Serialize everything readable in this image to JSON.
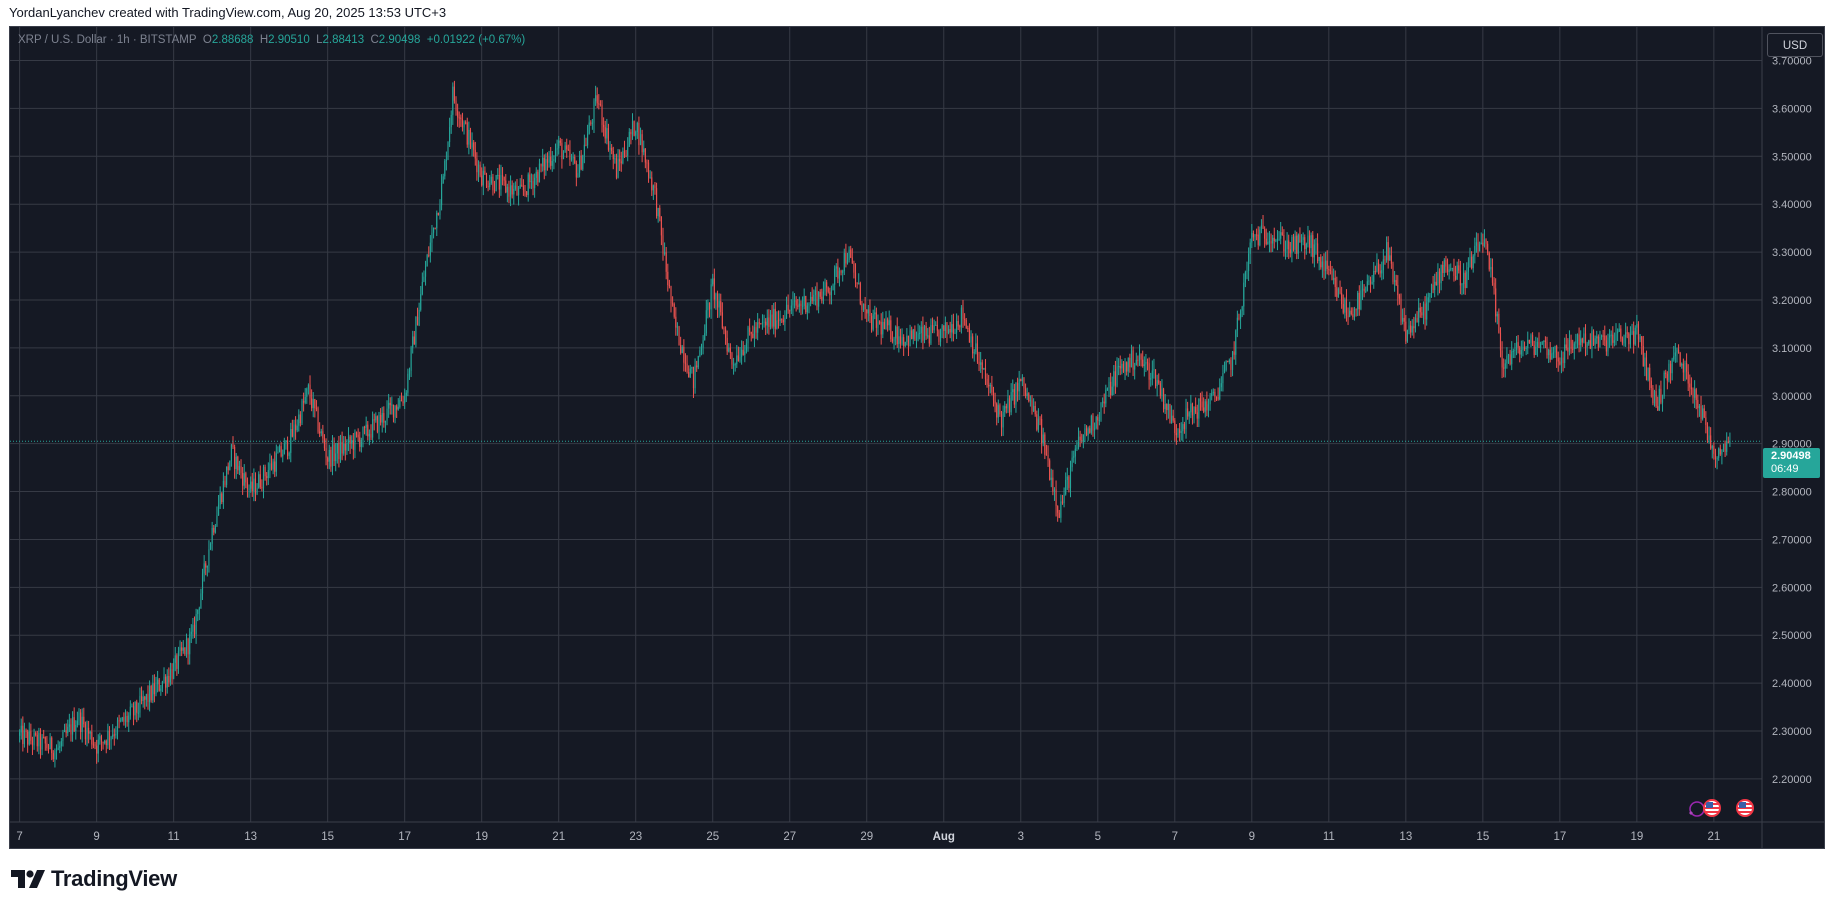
{
  "caption": "YordanLyanchev created with TradingView.com, Aug 20, 2025 13:53 UTC+3",
  "legend": {
    "symbol": "XRP / U.S. Dollar · 1h · BITSTAMP",
    "o_label": "O",
    "o": "2.88688",
    "h_label": "H",
    "h": "2.90510",
    "l_label": "L",
    "l": "2.88413",
    "c_label": "C",
    "c": "2.90498",
    "change": "+0.01922 (+0.67%)"
  },
  "currency_button": "USD",
  "last_price": {
    "price": "2.90498",
    "countdown": "06:49"
  },
  "brand": "TradingView",
  "icons": {
    "logo": "tradingview-logo-icon",
    "flags": "us-flag-icon",
    "event": "economic-event-icon"
  },
  "colors": {
    "up": "#26a69a",
    "down": "#ef5350",
    "background": "#151924",
    "grid": "#363a45",
    "text": "#b2b5be"
  },
  "chart_data": {
    "type": "candlestick",
    "title": "XRP / U.S. Dollar · 1h · BITSTAMP",
    "xlabel": "",
    "ylabel": "",
    "ylim": [
      2.11,
      3.77
    ],
    "grid": true,
    "y_ticks": [
      "2.20000",
      "2.30000",
      "2.40000",
      "2.50000",
      "2.60000",
      "2.70000",
      "2.80000",
      "2.90000",
      "3.00000",
      "3.10000",
      "3.20000",
      "3.30000",
      "3.40000",
      "3.50000",
      "3.60000",
      "3.70000"
    ],
    "x_ticks": [
      "7",
      "9",
      "11",
      "13",
      "15",
      "17",
      "19",
      "21",
      "23",
      "25",
      "27",
      "29",
      "Aug",
      "3",
      "5",
      "7",
      "9",
      "11",
      "13",
      "15",
      "17",
      "19",
      "21"
    ],
    "x_ticks_bold": [
      "Aug"
    ],
    "approx_close_path": [
      {
        "x": "Jul 7 00:00",
        "close": 2.29
      },
      {
        "x": "Jul 8 00:00",
        "close": 2.26
      },
      {
        "x": "Jul 8 12:00",
        "close": 2.33
      },
      {
        "x": "Jul 9 00:00",
        "close": 2.27
      },
      {
        "x": "Jul 10 00:00",
        "close": 2.34
      },
      {
        "x": "Jul 11 00:00",
        "close": 2.43
      },
      {
        "x": "Jul 11 12:00",
        "close": 2.5
      },
      {
        "x": "Jul 12 00:00",
        "close": 2.72
      },
      {
        "x": "Jul 12 12:00",
        "close": 2.88
      },
      {
        "x": "Jul 13 00:00",
        "close": 2.8
      },
      {
        "x": "Jul 14 00:00",
        "close": 2.9
      },
      {
        "x": "Jul 14 12:00",
        "close": 3.01
      },
      {
        "x": "Jul 15 00:00",
        "close": 2.87
      },
      {
        "x": "Jul 16 00:00",
        "close": 2.92
      },
      {
        "x": "Jul 17 00:00",
        "close": 3.0
      },
      {
        "x": "Jul 17 12:00",
        "close": 3.25
      },
      {
        "x": "Jul 18 00:00",
        "close": 3.45
      },
      {
        "x": "Jul 18 06:00",
        "close": 3.63
      },
      {
        "x": "Jul 19 00:00",
        "close": 3.46
      },
      {
        "x": "Jul 20 00:00",
        "close": 3.42
      },
      {
        "x": "Jul 21 00:00",
        "close": 3.52
      },
      {
        "x": "Jul 21 12:00",
        "close": 3.47
      },
      {
        "x": "Jul 22 00:00",
        "close": 3.62
      },
      {
        "x": "Jul 22 12:00",
        "close": 3.47
      },
      {
        "x": "Jul 23 00:00",
        "close": 3.57
      },
      {
        "x": "Jul 23 12:00",
        "close": 3.42
      },
      {
        "x": "Jul 24 00:00",
        "close": 3.15
      },
      {
        "x": "Jul 24 12:00",
        "close": 3.03
      },
      {
        "x": "Jul 25 00:00",
        "close": 3.23
      },
      {
        "x": "Jul 25 12:00",
        "close": 3.07
      },
      {
        "x": "Jul 26 00:00",
        "close": 3.13
      },
      {
        "x": "Jul 27 00:00",
        "close": 3.18
      },
      {
        "x": "Jul 28 00:00",
        "close": 3.22
      },
      {
        "x": "Jul 28 12:00",
        "close": 3.3
      },
      {
        "x": "Jul 29 00:00",
        "close": 3.16
      },
      {
        "x": "Jul 30 00:00",
        "close": 3.12
      },
      {
        "x": "Jul 31 00:00",
        "close": 3.13
      },
      {
        "x": "Jul 31 12:00",
        "close": 3.17
      },
      {
        "x": "Aug 1 00:00",
        "close": 3.05
      },
      {
        "x": "Aug 1 12:00",
        "close": 2.95
      },
      {
        "x": "Aug 2 00:00",
        "close": 3.03
      },
      {
        "x": "Aug 2 12:00",
        "close": 2.93
      },
      {
        "x": "Aug 3 00:00",
        "close": 2.76
      },
      {
        "x": "Aug 3 12:00",
        "close": 2.9
      },
      {
        "x": "Aug 4 00:00",
        "close": 2.96
      },
      {
        "x": "Aug 4 12:00",
        "close": 3.05
      },
      {
        "x": "Aug 5 00:00",
        "close": 3.08
      },
      {
        "x": "Aug 5 12:00",
        "close": 3.04
      },
      {
        "x": "Aug 6 00:00",
        "close": 2.93
      },
      {
        "x": "Aug 6 12:00",
        "close": 2.97
      },
      {
        "x": "Aug 7 00:00",
        "close": 2.99
      },
      {
        "x": "Aug 7 12:00",
        "close": 3.08
      },
      {
        "x": "Aug 8 00:00",
        "close": 3.33
      },
      {
        "x": "Aug 8 12:00",
        "close": 3.34
      },
      {
        "x": "Aug 9 00:00",
        "close": 3.31
      },
      {
        "x": "Aug 9 12:00",
        "close": 3.32
      },
      {
        "x": "Aug 10 00:00",
        "close": 3.25
      },
      {
        "x": "Aug 10 12:00",
        "close": 3.17
      },
      {
        "x": "Aug 11 00:00",
        "close": 3.22
      },
      {
        "x": "Aug 11 12:00",
        "close": 3.3
      },
      {
        "x": "Aug 12 00:00",
        "close": 3.13
      },
      {
        "x": "Aug 12 12:00",
        "close": 3.18
      },
      {
        "x": "Aug 13 00:00",
        "close": 3.28
      },
      {
        "x": "Aug 13 12:00",
        "close": 3.24
      },
      {
        "x": "Aug 14 00:00",
        "close": 3.33
      },
      {
        "x": "Aug 14 06:00",
        "close": 3.23
      },
      {
        "x": "Aug 14 12:00",
        "close": 3.07
      },
      {
        "x": "Aug 15 00:00",
        "close": 3.1
      },
      {
        "x": "Aug 15 12:00",
        "close": 3.11
      },
      {
        "x": "Aug 16 00:00",
        "close": 3.08
      },
      {
        "x": "Aug 16 12:00",
        "close": 3.12
      },
      {
        "x": "Aug 17 00:00",
        "close": 3.11
      },
      {
        "x": "Aug 18 00:00",
        "close": 3.13
      },
      {
        "x": "Aug 18 12:00",
        "close": 2.98
      },
      {
        "x": "Aug 19 00:00",
        "close": 3.09
      },
      {
        "x": "Aug 19 12:00",
        "close": 3.01
      },
      {
        "x": "Aug 20 00:00",
        "close": 2.88
      },
      {
        "x": "Aug 20 10:00",
        "close": 2.90498
      }
    ],
    "last_price": 2.90498
  }
}
